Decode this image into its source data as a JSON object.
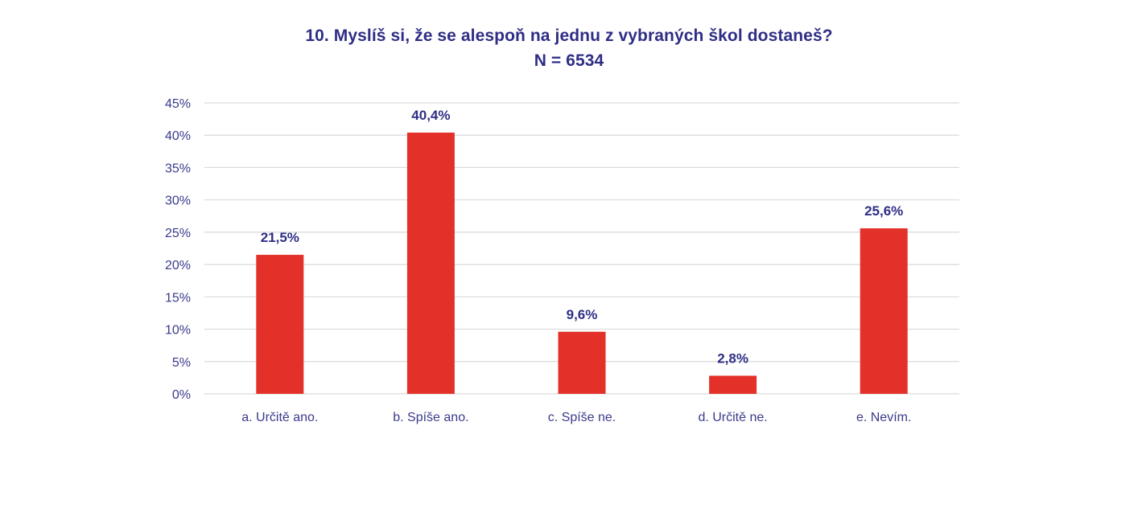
{
  "chart_data": {
    "type": "bar",
    "title": "10. Myslíš si, že se alespoň na jednu z vybraných škol dostaneš?",
    "subtitle": "N = 6534",
    "categories": [
      "a. Určitě ano.",
      "b. Spíše ano.",
      "c. Spíše ne.",
      "d. Určitě ne.",
      "e. Nevím."
    ],
    "values": [
      21.5,
      40.4,
      9.6,
      2.8,
      25.6
    ],
    "data_labels": [
      "21,5%",
      "40,4%",
      "9,6%",
      "2,8%",
      "25,6%"
    ],
    "ylim": [
      0,
      45
    ],
    "yticks": [
      0,
      5,
      10,
      15,
      20,
      25,
      30,
      35,
      40,
      45
    ],
    "ytick_labels": [
      "0%",
      "5%",
      "10%",
      "15%",
      "20%",
      "25%",
      "30%",
      "35%",
      "40%",
      "45%"
    ],
    "xlabel": "",
    "ylabel": "",
    "grid": true,
    "legend": "none",
    "colors": {
      "bar": "#e3312a",
      "title": "#2e2e86",
      "data_label": "#2e2e86",
      "tick_label": "#3a3a8c",
      "grid": "#d9d9d9"
    }
  }
}
